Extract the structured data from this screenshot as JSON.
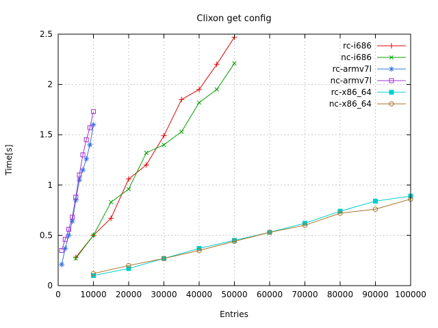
{
  "chart_data": {
    "type": "line",
    "title": "Clixon get config",
    "xlabel": "Entries",
    "ylabel": "Time[s]",
    "xlim": [
      0,
      100000
    ],
    "ylim": [
      0,
      2.5
    ],
    "xticks": [
      0,
      10000,
      20000,
      30000,
      40000,
      50000,
      60000,
      70000,
      80000,
      90000,
      100000
    ],
    "xtick_labels": [
      "0",
      "10000",
      "20000",
      "30000",
      "40000",
      "50000",
      "60000",
      "70000",
      "80000",
      "90000",
      "100000"
    ],
    "yticks": [
      0,
      0.5,
      1,
      1.5,
      2,
      2.5
    ],
    "ytick_labels": [
      "0",
      "0.5",
      "1",
      "1.5",
      "2",
      "2.5"
    ],
    "grid": true,
    "grid_color": "#c8c8c8",
    "legend_position": "top-right",
    "series": [
      {
        "name": "rc-i686",
        "color": "#e00000",
        "marker": "plus",
        "x": [
          5000,
          10000,
          15000,
          20000,
          25000,
          30000,
          35000,
          40000,
          45000,
          50000
        ],
        "y": [
          0.28,
          0.5,
          0.67,
          1.06,
          1.2,
          1.49,
          1.85,
          1.95,
          2.2,
          2.47
        ]
      },
      {
        "name": "nc-i686",
        "color": "#00a000",
        "marker": "cross",
        "x": [
          5000,
          10000,
          15000,
          20000,
          25000,
          30000,
          35000,
          40000,
          45000,
          50000
        ],
        "y": [
          0.27,
          0.5,
          0.83,
          0.96,
          1.32,
          1.4,
          1.53,
          1.82,
          1.95,
          2.21
        ]
      },
      {
        "name": "rc-armv7l",
        "color": "#3070e0",
        "marker": "asterisk",
        "x": [
          1000,
          2000,
          3000,
          4000,
          5000,
          6000,
          7000,
          8000,
          9000,
          10000
        ],
        "y": [
          0.21,
          0.37,
          0.5,
          0.64,
          0.85,
          1.05,
          1.15,
          1.26,
          1.4,
          1.6
        ]
      },
      {
        "name": "nc-armv7l",
        "color": "#a030d0",
        "marker": "square-open",
        "x": [
          1000,
          2000,
          3000,
          4000,
          5000,
          6000,
          7000,
          8000,
          9000,
          10000
        ],
        "y": [
          0.35,
          0.46,
          0.56,
          0.68,
          0.88,
          1.1,
          1.3,
          1.45,
          1.57,
          1.73
        ]
      },
      {
        "name": "rc-x86_64",
        "color": "#00cdcd",
        "marker": "square-filled",
        "x": [
          10000,
          20000,
          30000,
          40000,
          50000,
          60000,
          70000,
          80000,
          90000,
          100000
        ],
        "y": [
          0.1,
          0.17,
          0.27,
          0.37,
          0.45,
          0.53,
          0.62,
          0.74,
          0.84,
          0.89
        ]
      },
      {
        "name": "nc-x86_64",
        "color": "#aa7228",
        "marker": "circle-open",
        "x": [
          10000,
          20000,
          30000,
          40000,
          50000,
          60000,
          70000,
          80000,
          90000,
          100000
        ],
        "y": [
          0.12,
          0.2,
          0.27,
          0.35,
          0.44,
          0.53,
          0.6,
          0.72,
          0.76,
          0.86
        ]
      }
    ]
  }
}
